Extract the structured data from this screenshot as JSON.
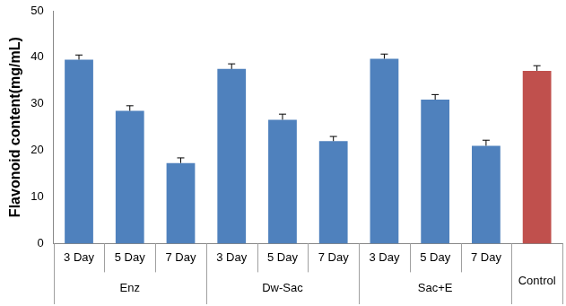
{
  "chart_data": {
    "type": "bar",
    "y_label": "Flavonoid content(mg/mL)",
    "categories": [
      "3 Day",
      "5 Day",
      "7 Day",
      "3 Day",
      "5 Day",
      "7 Day",
      "3 Day",
      "5 Day",
      "7 Day",
      null
    ],
    "groups": [
      "Enz",
      "Enz",
      "Enz",
      "Dw-Sac",
      "Dw-Sac",
      "Dw-Sac",
      "Sac+E",
      "Sac+E",
      "Sac+E",
      "Control"
    ],
    "values": [
      39.5,
      28.5,
      17.3,
      37.5,
      26.6,
      22.0,
      39.7,
      30.9,
      21.0,
      37.1
    ],
    "errors": [
      1.0,
      1.1,
      1.1,
      1.1,
      1.2,
      1.0,
      1.0,
      1.1,
      1.2,
      1.1
    ],
    "colors": [
      "#4f81bd",
      "#4f81bd",
      "#4f81bd",
      "#4f81bd",
      "#4f81bd",
      "#4f81bd",
      "#4f81bd",
      "#4f81bd",
      "#4f81bd",
      "#c0504d"
    ],
    "ylim": [
      0,
      50
    ],
    "yticks": [
      0,
      10,
      20,
      30,
      40,
      50
    ],
    "grid": false
  }
}
